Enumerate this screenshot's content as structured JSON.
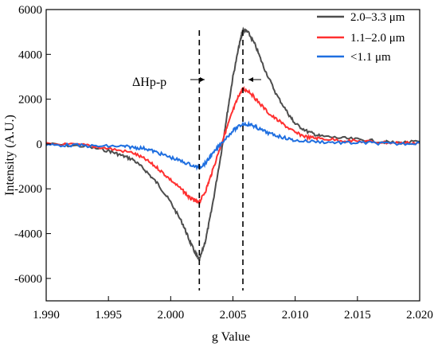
{
  "chart_data": {
    "type": "line",
    "xlabel": "g Value",
    "ylabel": "Intensity (A.U.)",
    "xlim": [
      1.99,
      2.02
    ],
    "ylim": [
      -7000,
      6000
    ],
    "x_ticks": [
      "1.990",
      "1.995",
      "2.000",
      "2.005",
      "2.010",
      "2.015",
      "2.020"
    ],
    "y_ticks": [
      "-6000",
      "-4000",
      "-2000",
      "0",
      "2000",
      "4000",
      "6000"
    ],
    "grid": false,
    "legend_position": "top-right",
    "annotation": "ΔHp-p",
    "markers": [
      2.0023,
      2.0058
    ],
    "series": [
      {
        "name": "2.0–3.3 μm",
        "color": "#4d4d4d",
        "x": [
          1.99,
          1.993,
          1.995,
          1.996,
          1.997,
          1.998,
          1.999,
          2.0,
          2.001,
          2.0015,
          2.002,
          2.0023,
          2.0028,
          2.0033,
          2.004,
          2.0045,
          2.005,
          2.0055,
          2.0058,
          2.0062,
          2.0068,
          2.0075,
          2.0085,
          2.0095,
          2.01,
          2.011,
          2.012,
          2.014,
          2.016,
          2.018,
          2.02
        ],
        "values": [
          0,
          -100,
          -300,
          -500,
          -700,
          -1200,
          -1800,
          -2600,
          -3600,
          -4300,
          -4900,
          -5200,
          -4300,
          -2900,
          -600,
          1200,
          3000,
          4400,
          5100,
          5000,
          4400,
          3400,
          2200,
          1300,
          900,
          550,
          350,
          250,
          150,
          50,
          100
        ]
      },
      {
        "name": "1.1–2.0 μm",
        "color": "#ff3030",
        "x": [
          1.99,
          1.993,
          1.995,
          1.997,
          1.998,
          1.999,
          2.0,
          2.001,
          2.0015,
          2.002,
          2.0023,
          2.0028,
          2.0033,
          2.004,
          2.0045,
          2.005,
          2.0055,
          2.0058,
          2.0063,
          2.007,
          2.008,
          2.009,
          2.01,
          2.011,
          2.012,
          2.014,
          2.016,
          2.018,
          2.02
        ],
        "values": [
          0,
          -50,
          -200,
          -400,
          -700,
          -1100,
          -1600,
          -2100,
          -2400,
          -2550,
          -2600,
          -2100,
          -1300,
          -100,
          700,
          1500,
          2200,
          2450,
          2350,
          1900,
          1300,
          900,
          500,
          300,
          250,
          150,
          100,
          50,
          50
        ]
      },
      {
        "name": "<1.1 μm",
        "color": "#1f6fe0",
        "x": [
          1.99,
          1.992,
          1.994,
          1.996,
          1.997,
          1.998,
          1.999,
          2.0,
          2.001,
          2.002,
          2.0023,
          2.0028,
          2.0033,
          2.004,
          2.005,
          2.0058,
          2.0065,
          2.007,
          2.008,
          2.009,
          2.01,
          2.012,
          2.014,
          2.016,
          2.018,
          2.02
        ],
        "values": [
          -50,
          -50,
          -100,
          -100,
          -150,
          -200,
          -400,
          -600,
          -800,
          -1000,
          -1050,
          -850,
          -500,
          0,
          600,
          900,
          850,
          700,
          450,
          300,
          150,
          100,
          50,
          50,
          0,
          50
        ]
      }
    ]
  }
}
